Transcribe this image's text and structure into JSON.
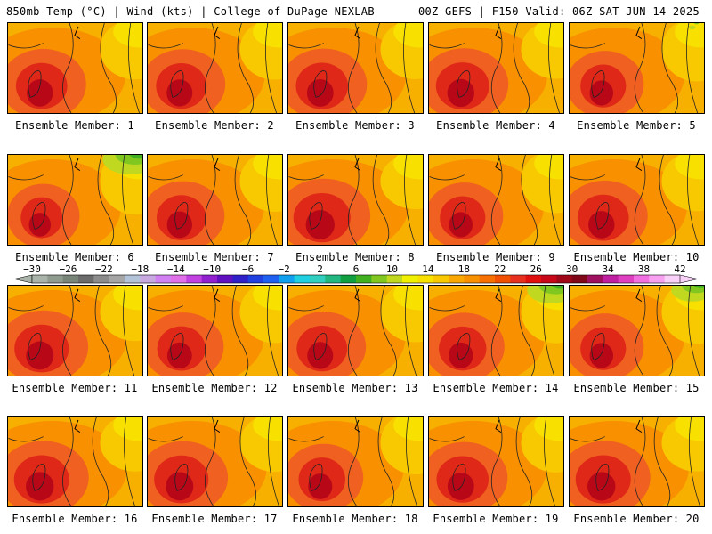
{
  "header": {
    "left": "850mb Temp (°C) | Wind (kts) | College of DuPage NEXLAB",
    "right": "00Z GEFS | F150 Valid: 06Z SAT JUN 14 2025"
  },
  "member_label_prefix": "Ensemble Member:",
  "members": [
    {
      "number": "1",
      "warmth": 0.7,
      "cool_ne": 0.0
    },
    {
      "number": "2",
      "warmth": 0.68,
      "cool_ne": 0.0
    },
    {
      "number": "3",
      "warmth": 0.72,
      "cool_ne": 0.0
    },
    {
      "number": "4",
      "warmth": 0.75,
      "cool_ne": 0.0
    },
    {
      "number": "5",
      "warmth": 0.55,
      "cool_ne": 0.1
    },
    {
      "number": "6",
      "warmth": 0.45,
      "cool_ne": 0.8
    },
    {
      "number": "7",
      "warmth": 0.65,
      "cool_ne": 0.0
    },
    {
      "number": "8",
      "warmth": 0.85,
      "cool_ne": 0.0
    },
    {
      "number": "9",
      "warmth": 0.55,
      "cool_ne": 0.0
    },
    {
      "number": "10",
      "warmth": 0.7,
      "cool_ne": 0.0
    },
    {
      "number": "11",
      "warmth": 0.78,
      "cool_ne": 0.0
    },
    {
      "number": "12",
      "warmth": 0.62,
      "cool_ne": 0.0
    },
    {
      "number": "13",
      "warmth": 0.68,
      "cool_ne": 0.0
    },
    {
      "number": "14",
      "warmth": 0.6,
      "cool_ne": 0.7
    },
    {
      "number": "15",
      "warmth": 0.55,
      "cool_ne": 0.6
    },
    {
      "number": "16",
      "warmth": 0.8,
      "cool_ne": 0.0
    },
    {
      "number": "17",
      "warmth": 0.78,
      "cool_ne": 0.0
    },
    {
      "number": "18",
      "warmth": 0.58,
      "cool_ne": 0.0
    },
    {
      "number": "19",
      "warmth": 0.72,
      "cool_ne": 0.0
    },
    {
      "number": "20",
      "warmth": 0.8,
      "cool_ne": 0.0
    }
  ],
  "colorbar": {
    "labels": [
      "−30",
      "−26",
      "−22",
      "−18",
      "−14",
      "−10",
      "−6",
      "−2",
      "2",
      "6",
      "10",
      "14",
      "18",
      "22",
      "26",
      "30",
      "34",
      "38",
      "42"
    ],
    "colors": [
      "#aab3a9",
      "#8f9b8e",
      "#7a8579",
      "#6b6b6b",
      "#8c8c8c",
      "#a6a6a6",
      "#b4c4d8",
      "#c8a8e0",
      "#d080f0",
      "#e070e8",
      "#c040e0",
      "#9020d0",
      "#6010c0",
      "#3020c8",
      "#2040e0",
      "#2060f0",
      "#10a0f0",
      "#20d0e0",
      "#30d0c0",
      "#20b880",
      "#10a040",
      "#40b020",
      "#80c820",
      "#c0d820",
      "#f0f000",
      "#f8e000",
      "#f8c800",
      "#f8a800",
      "#f89000",
      "#f87000",
      "#f05000",
      "#e83020",
      "#e01010",
      "#c80818",
      "#a00818",
      "#800818",
      "#a01060",
      "#c020a0",
      "#e040c0",
      "#f070e0",
      "#f8a0f0",
      "#f8d0f8"
    ]
  }
}
